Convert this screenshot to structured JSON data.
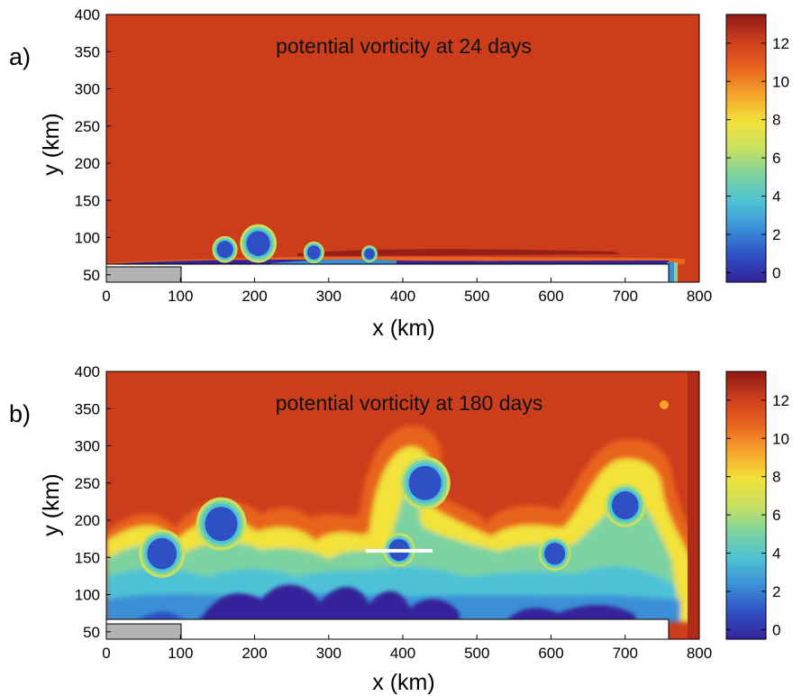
{
  "colors": {
    "background_pv": "#cc3d1c",
    "colormap": [
      "#34239a",
      "#2f4fc4",
      "#3a8fd6",
      "#4ec2d6",
      "#7dd3a0",
      "#c8e060",
      "#f2e23a",
      "#f6a42b",
      "#e8641f",
      "#cc3d1c",
      "#8e1a16"
    ]
  },
  "chart_data": [
    {
      "type": "heatmap",
      "panel_label": "a)",
      "title": "potential vorticity at 24 days",
      "xlabel": "x (km)",
      "ylabel": "y (km)",
      "xlim": [
        0,
        800
      ],
      "ylim": [
        40,
        400
      ],
      "xticks": [
        "0",
        "100",
        "200",
        "300",
        "400",
        "500",
        "600",
        "700",
        "800"
      ],
      "yticks": [
        "50",
        "100",
        "150",
        "200",
        "250",
        "300",
        "350",
        "400"
      ],
      "colorbar": {
        "min": -0.5,
        "max": 13.5,
        "ticks": [
          "0",
          "2",
          "4",
          "6",
          "8",
          "10",
          "12"
        ]
      },
      "background_value": 11.5,
      "coast_y": 67,
      "shelf_x_end": 760,
      "grey_box": {
        "x": [
          0,
          100
        ],
        "y": [
          40,
          60
        ]
      },
      "eddies": [
        {
          "x": 160,
          "y": 84,
          "r": 11,
          "value": 0.5
        },
        {
          "x": 205,
          "y": 92,
          "r": 16,
          "value": 0.5
        },
        {
          "x": 280,
          "y": 80,
          "r": 9,
          "value": 0.5
        },
        {
          "x": 355,
          "y": 78,
          "r": 7,
          "value": 1.0
        }
      ]
    },
    {
      "type": "heatmap",
      "panel_label": "b)",
      "title": "potential vorticity at 180 days",
      "xlabel": "x (km)",
      "ylabel": "y (km)",
      "xlim": [
        0,
        800
      ],
      "ylim": [
        40,
        400
      ],
      "xticks": [
        "0",
        "100",
        "200",
        "300",
        "400",
        "500",
        "600",
        "700",
        "800"
      ],
      "yticks": [
        "50",
        "100",
        "150",
        "200",
        "250",
        "300",
        "350",
        "400"
      ],
      "colorbar": {
        "min": -0.5,
        "max": 13.5,
        "ticks": [
          "0",
          "2",
          "4",
          "6",
          "8",
          "10",
          "12"
        ]
      },
      "background_value": 11.5,
      "coast_y": 70,
      "shelf_x_end": 760,
      "grey_box": {
        "x": [
          0,
          100
        ],
        "y": [
          40,
          60
        ]
      },
      "section_line": {
        "x": [
          350,
          440
        ],
        "y": 159
      },
      "eddies": [
        {
          "x": 75,
          "y": 155,
          "r": 20,
          "value": 0.5
        },
        {
          "x": 155,
          "y": 195,
          "r": 22,
          "value": 0.5
        },
        {
          "x": 395,
          "y": 160,
          "r": 14,
          "value": 0.5
        },
        {
          "x": 430,
          "y": 250,
          "r": 22,
          "value": 0.5
        },
        {
          "x": 605,
          "y": 155,
          "r": 14,
          "value": 0.5
        },
        {
          "x": 700,
          "y": 220,
          "r": 18,
          "value": 1.0
        }
      ]
    }
  ]
}
